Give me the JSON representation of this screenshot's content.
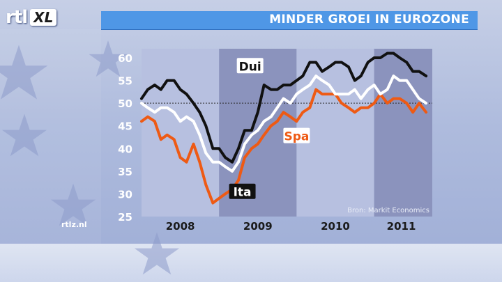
{
  "header": {
    "logo_rtl": "rtl",
    "logo_xl": "XL",
    "title": "MINDER GROEI IN EUROZONE"
  },
  "footer": {
    "site": "rtlz.nl"
  },
  "colors": {
    "title_bar": "#4f97e6",
    "plot_light": "#b7c0e0",
    "plot_dark": "#8b93bd",
    "Dui": "#111111",
    "Ita": "#ffffff",
    "Spa": "#ee5a14"
  },
  "chart_data": {
    "type": "line",
    "title": "MINDER GROEI IN EUROZONE",
    "source": "Bron: Markit Economics",
    "ylim": [
      25,
      62
    ],
    "yticks": [
      25,
      30,
      35,
      40,
      45,
      50,
      55,
      60
    ],
    "xlim": [
      2007.75,
      2011.5
    ],
    "x_tick_labels": [
      {
        "label": "2008",
        "x": 2008.25
      },
      {
        "label": "2009",
        "x": 2009.25
      },
      {
        "label": "2010",
        "x": 2010.25
      },
      {
        "label": "2011",
        "x": 2011.1
      }
    ],
    "year_bands": [
      {
        "from": 2007.75,
        "to": 2008.75,
        "shade": "light"
      },
      {
        "from": 2008.75,
        "to": 2009.75,
        "shade": "dark"
      },
      {
        "from": 2009.75,
        "to": 2010.75,
        "shade": "light"
      },
      {
        "from": 2010.75,
        "to": 2011.5,
        "shade": "dark"
      }
    ],
    "reference_line": 50,
    "series": [
      {
        "name": "Dui",
        "color": "#111111",
        "x": [
          2007.75,
          2007.83,
          2007.92,
          2008.0,
          2008.08,
          2008.17,
          2008.25,
          2008.33,
          2008.42,
          2008.5,
          2008.58,
          2008.67,
          2008.75,
          2008.83,
          2008.92,
          2009.0,
          2009.08,
          2009.17,
          2009.25,
          2009.33,
          2009.42,
          2009.5,
          2009.58,
          2009.67,
          2009.75,
          2009.83,
          2009.92,
          2010.0,
          2010.08,
          2010.17,
          2010.25,
          2010.33,
          2010.42,
          2010.5,
          2010.58,
          2010.67,
          2010.75,
          2010.83,
          2010.92,
          2011.0,
          2011.08,
          2011.17,
          2011.25,
          2011.33,
          2011.42
        ],
        "y": [
          51,
          53,
          54,
          53,
          55,
          55,
          53,
          52,
          50,
          48,
          45,
          40,
          40,
          38,
          37,
          40,
          44,
          44,
          48,
          54,
          53,
          53,
          54,
          54,
          55,
          56,
          59,
          59,
          57,
          58,
          59,
          59,
          58,
          55,
          56,
          59,
          60,
          60,
          61,
          61,
          60,
          59,
          57,
          57,
          56
        ]
      },
      {
        "name": "Ita",
        "color": "#ffffff",
        "x": [
          2007.75,
          2007.83,
          2007.92,
          2008.0,
          2008.08,
          2008.17,
          2008.25,
          2008.33,
          2008.42,
          2008.5,
          2008.58,
          2008.67,
          2008.75,
          2008.83,
          2008.92,
          2009.0,
          2009.08,
          2009.17,
          2009.25,
          2009.33,
          2009.42,
          2009.5,
          2009.58,
          2009.67,
          2009.75,
          2009.83,
          2009.92,
          2010.0,
          2010.08,
          2010.17,
          2010.25,
          2010.33,
          2010.42,
          2010.5,
          2010.58,
          2010.67,
          2010.75,
          2010.83,
          2010.92,
          2011.0,
          2011.08,
          2011.17,
          2011.25,
          2011.33,
          2011.42
        ],
        "y": [
          50,
          49,
          48,
          49,
          49,
          48,
          46,
          47,
          46,
          43,
          39,
          37,
          37,
          36,
          35,
          37,
          41,
          43,
          44,
          46,
          47,
          49,
          51,
          50,
          52,
          53,
          54,
          56,
          55,
          54,
          52,
          52,
          52,
          53,
          51,
          53,
          54,
          52,
          53,
          56,
          55,
          55,
          53,
          51,
          50
        ]
      },
      {
        "name": "Spa",
        "color": "#ee5a14",
        "x": [
          2007.75,
          2007.83,
          2007.92,
          2008.0,
          2008.08,
          2008.17,
          2008.25,
          2008.33,
          2008.42,
          2008.5,
          2008.58,
          2008.67,
          2008.75,
          2008.83,
          2008.92,
          2009.0,
          2009.08,
          2009.17,
          2009.25,
          2009.33,
          2009.42,
          2009.5,
          2009.58,
          2009.67,
          2009.75,
          2009.83,
          2009.92,
          2010.0,
          2010.08,
          2010.17,
          2010.25,
          2010.33,
          2010.42,
          2010.5,
          2010.58,
          2010.67,
          2010.75,
          2010.83,
          2010.92,
          2011.0,
          2011.08,
          2011.17,
          2011.25,
          2011.33,
          2011.42
        ],
        "y": [
          46,
          47,
          46,
          42,
          43,
          42,
          38,
          37,
          41,
          37,
          32,
          28,
          29,
          30,
          31,
          33,
          38,
          40,
          41,
          43,
          45,
          46,
          48,
          47,
          46,
          48,
          49,
          53,
          52,
          52,
          52,
          50,
          49,
          48,
          49,
          49,
          50,
          52,
          50,
          51,
          51,
          50,
          48,
          50,
          48
        ]
      }
    ],
    "series_labels": [
      {
        "name": "Dui",
        "x": 2009.15,
        "y": 57.2,
        "style": "dark"
      },
      {
        "name": "Spa",
        "x": 2009.75,
        "y": 41.8,
        "style": "orange"
      },
      {
        "name": "Ita",
        "x": 2009.05,
        "y": 29.5,
        "style": "white"
      }
    ]
  }
}
